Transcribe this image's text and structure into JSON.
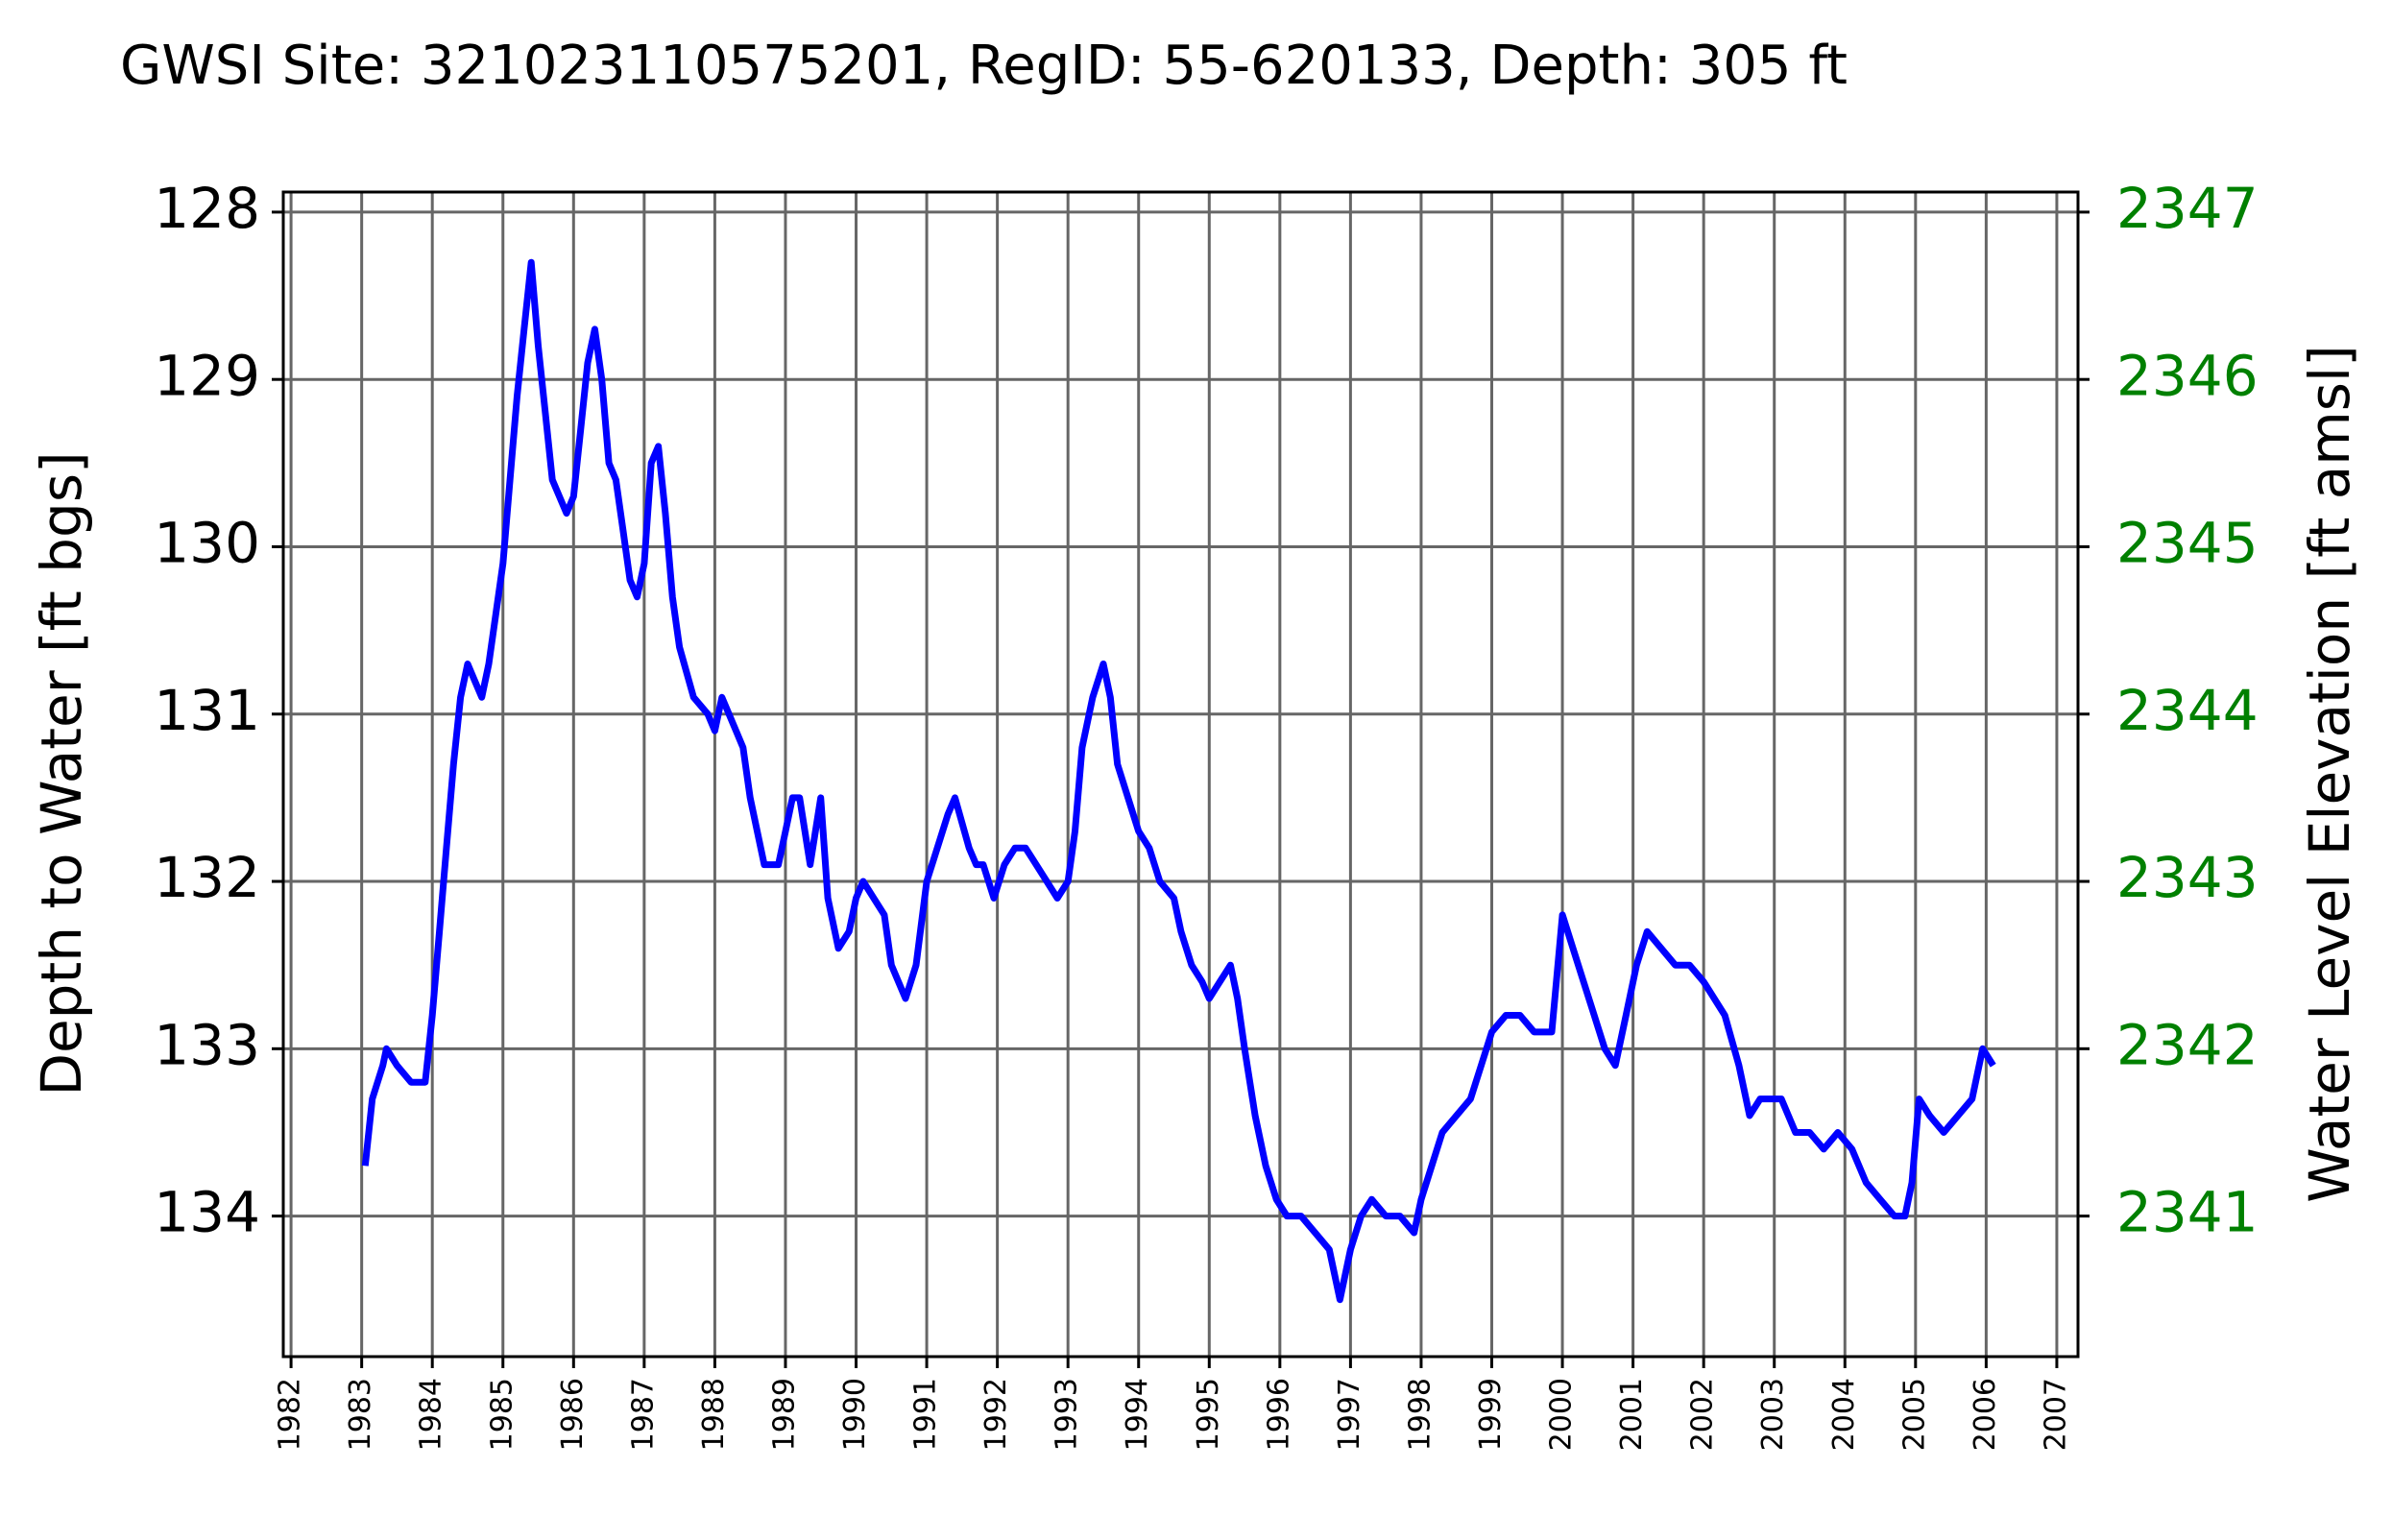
{
  "chart_data": {
    "type": "line",
    "title": "GWSI Site: 321023110575201, RegID: 55-620133, Depth: 305 ft",
    "ylabel": "Depth to Water [ft bgs]",
    "y2label": "Water Level Elevation [ft amsl]",
    "xlim": [
      1981.89,
      2007.3
    ],
    "xticks": [
      1982,
      1983,
      1984,
      1985,
      1986,
      1987,
      1988,
      1989,
      1990,
      1991,
      1992,
      1993,
      1994,
      1995,
      1996,
      1997,
      1998,
      1999,
      2000,
      2001,
      2002,
      2003,
      2004,
      2005,
      2006,
      2007
    ],
    "ylim": [
      134.84,
      127.88
    ],
    "yticks": [
      128,
      129,
      130,
      131,
      132,
      133,
      134
    ],
    "y2lim": [
      2340.16,
      2347.12
    ],
    "y2ticks": [
      2341,
      2342,
      2343,
      2344,
      2345,
      2346,
      2347
    ],
    "y2color": "#008000",
    "grid": true,
    "series": [
      {
        "color": "#0000ff",
        "x": [
          1983.05,
          1983.15,
          1983.3,
          1983.35,
          1983.5,
          1983.7,
          1983.9,
          1984.0,
          1984.1,
          1984.2,
          1984.3,
          1984.4,
          1984.5,
          1984.6,
          1984.7,
          1984.8,
          1984.9,
          1985.0,
          1985.1,
          1985.2,
          1985.3,
          1985.4,
          1985.5,
          1985.6,
          1985.7,
          1985.9,
          1986.0,
          1986.1,
          1986.2,
          1986.3,
          1986.4,
          1986.5,
          1986.6,
          1986.7,
          1986.8,
          1986.9,
          1987.0,
          1987.1,
          1987.2,
          1987.3,
          1987.4,
          1987.5,
          1987.7,
          1987.9,
          1988.0,
          1988.1,
          1988.3,
          1988.4,
          1988.5,
          1988.7,
          1988.9,
          1989.0,
          1989.1,
          1989.2,
          1989.35,
          1989.5,
          1989.6,
          1989.75,
          1989.9,
          1990.0,
          1990.1,
          1990.25,
          1990.4,
          1990.5,
          1990.7,
          1990.85,
          1991.0,
          1991.15,
          1991.3,
          1991.4,
          1991.6,
          1991.7,
          1991.8,
          1991.95,
          1992.1,
          1992.25,
          1992.4,
          1992.55,
          1992.7,
          1992.85,
          1993.0,
          1993.1,
          1993.2,
          1993.35,
          1993.5,
          1993.6,
          1993.7,
          1993.85,
          1994.0,
          1994.15,
          1994.3,
          1994.5,
          1994.6,
          1994.75,
          1994.9,
          1995.0,
          1995.15,
          1995.3,
          1995.4,
          1995.5,
          1995.65,
          1995.8,
          1995.95,
          1996.1,
          1996.3,
          1996.5,
          1996.7,
          1996.85,
          1997.0,
          1997.15,
          1997.3,
          1997.5,
          1997.7,
          1997.9,
          1998.0,
          1998.15,
          1998.3,
          1998.5,
          1998.7,
          1998.85,
          1999.0,
          1999.2,
          1999.4,
          1999.6,
          1999.85,
          2000.0,
          2000.15,
          2000.3,
          2000.45,
          2000.6,
          2000.75,
          2000.9,
          2001.05,
          2001.2,
          2001.4,
          2001.6,
          2001.8,
          2002.0,
          2002.15,
          2002.3,
          2002.5,
          2002.65,
          2002.8,
          2002.95,
          2003.1,
          2003.3,
          2003.5,
          2003.7,
          2003.9,
          2004.1,
          2004.3,
          2004.5,
          2004.7,
          2004.85,
          2004.95,
          2005.05,
          2005.2,
          2005.4,
          2005.6,
          2005.8,
          2005.95,
          2006.1
        ],
        "values": [
          133.7,
          133.3,
          133.1,
          133.0,
          133.1,
          133.2,
          133.2,
          132.8,
          132.3,
          131.8,
          131.3,
          130.9,
          130.7,
          130.8,
          130.9,
          130.7,
          130.4,
          130.1,
          129.6,
          129.1,
          128.7,
          128.3,
          128.8,
          129.2,
          129.6,
          129.8,
          129.7,
          129.3,
          128.9,
          128.7,
          129.0,
          129.5,
          129.6,
          129.9,
          130.2,
          130.3,
          130.1,
          129.5,
          129.4,
          129.8,
          130.3,
          130.6,
          130.9,
          131.0,
          131.1,
          130.9,
          131.1,
          131.2,
          131.5,
          131.9,
          131.9,
          131.7,
          131.5,
          131.5,
          131.9,
          131.5,
          132.1,
          132.4,
          132.3,
          132.1,
          132.0,
          132.1,
          132.2,
          132.5,
          132.7,
          132.5,
          132.0,
          131.8,
          131.6,
          131.5,
          131.8,
          131.9,
          131.9,
          132.1,
          131.9,
          131.8,
          131.8,
          131.9,
          132.0,
          132.1,
          132.0,
          131.7,
          131.2,
          130.9,
          130.7,
          130.9,
          131.3,
          131.5,
          131.7,
          131.8,
          132.0,
          132.1,
          132.3,
          132.5,
          132.6,
          132.7,
          132.6,
          132.5,
          132.7,
          133.0,
          133.4,
          133.7,
          133.9,
          134.0,
          134.0,
          134.1,
          134.2,
          134.5,
          134.2,
          134.0,
          133.9,
          134.0,
          134.0,
          134.1,
          133.9,
          133.7,
          133.5,
          133.4,
          133.3,
          133.1,
          132.9,
          132.8,
          132.8,
          132.9,
          132.9,
          132.2,
          132.4,
          132.6,
          132.8,
          133.0,
          133.1,
          132.8,
          132.5,
          132.3,
          132.4,
          132.5,
          132.5,
          132.6,
          132.7,
          132.8,
          133.1,
          133.4,
          133.3,
          133.3,
          133.3,
          133.5,
          133.5,
          133.6,
          133.5,
          133.6,
          133.8,
          133.9,
          134.0,
          134.0,
          133.8,
          133.3,
          133.4,
          133.5,
          133.4,
          133.3,
          133.0,
          133.1
        ]
      }
    ]
  }
}
